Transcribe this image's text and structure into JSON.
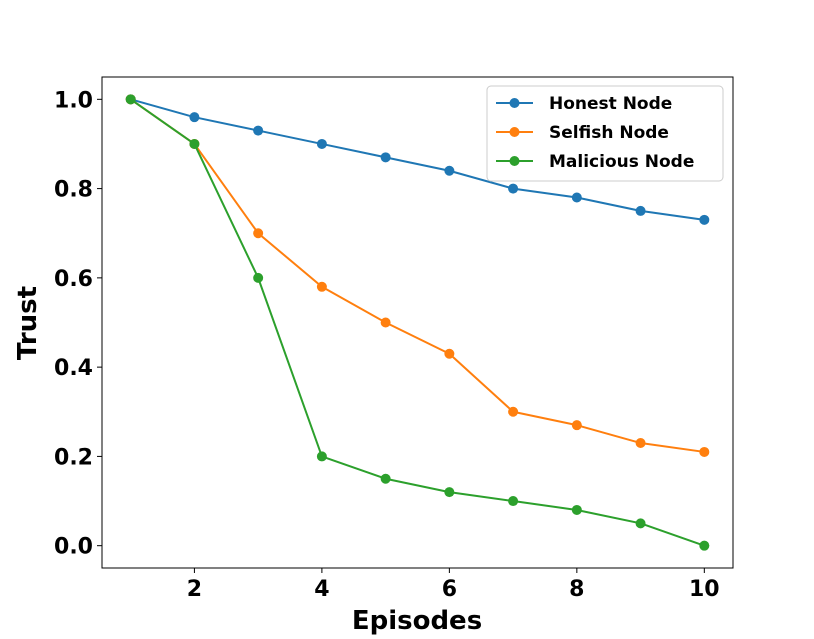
{
  "chart_data": {
    "type": "line",
    "xlabel": "Episodes",
    "ylabel": "Trust",
    "x": [
      1,
      2,
      3,
      4,
      5,
      6,
      7,
      8,
      9,
      10
    ],
    "xlim": [
      0.55,
      10.45
    ],
    "ylim": [
      -0.05,
      1.05
    ],
    "xticks": [
      2,
      4,
      6,
      8,
      10
    ],
    "xtick_labels": [
      "2",
      "4",
      "6",
      "8",
      "10"
    ],
    "yticks": [
      0.0,
      0.2,
      0.4,
      0.6,
      0.8,
      1.0
    ],
    "ytick_labels": [
      "0.0",
      "0.2",
      "0.4",
      "0.6",
      "0.8",
      "1.0"
    ],
    "grid": false,
    "legend_position": "top-right",
    "series": [
      {
        "name": "Honest Node",
        "color": "#1f77b4",
        "values": [
          1.0,
          0.96,
          0.93,
          0.9,
          0.87,
          0.84,
          0.8,
          0.78,
          0.75,
          0.73
        ]
      },
      {
        "name": "Selfish Node",
        "color": "#ff7f0e",
        "values": [
          1.0,
          0.9,
          0.7,
          0.58,
          0.5,
          0.43,
          0.3,
          0.27,
          0.23,
          0.21
        ]
      },
      {
        "name": "Malicious Node",
        "color": "#2ca02c",
        "values": [
          1.0,
          0.9,
          0.6,
          0.2,
          0.15,
          0.12,
          0.1,
          0.08,
          0.05,
          0.0
        ]
      }
    ]
  }
}
